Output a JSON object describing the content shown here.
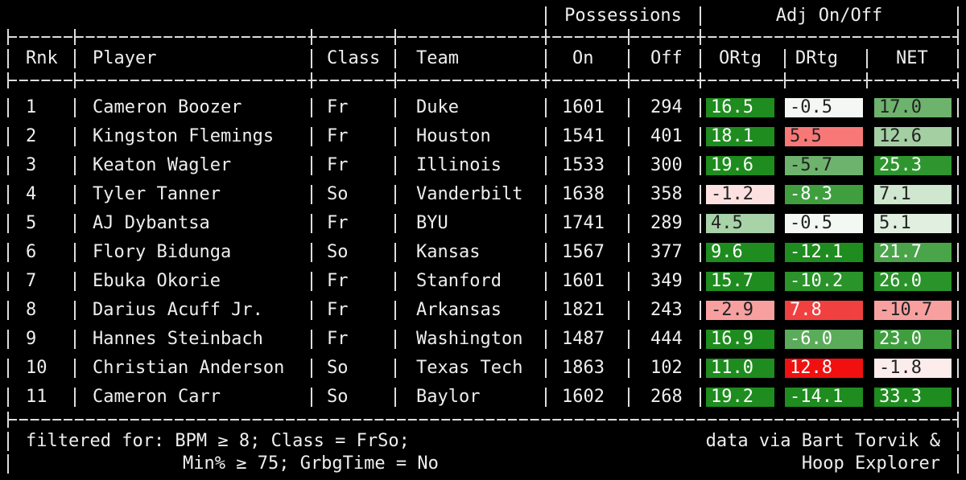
{
  "header_groups": [
    "Possessions",
    "Adj On/Off"
  ],
  "columns": [
    "Rnk",
    "Player",
    "Class",
    "Team",
    "On",
    "Off",
    "ORtg",
    "DRtg",
    "NET"
  ],
  "rows": [
    [
      "1",
      "Cameron Boozer",
      "Fr",
      "Duke",
      "1601",
      "294",
      "16.5",
      "-0.5",
      "17.0"
    ],
    [
      "2",
      "Kingston Flemings",
      "Fr",
      "Houston",
      "1541",
      "401",
      "18.1",
      "5.5",
      "12.6"
    ],
    [
      "3",
      "Keaton Wagler",
      "Fr",
      "Illinois",
      "1533",
      "300",
      "19.6",
      "-5.7",
      "25.3"
    ],
    [
      "4",
      "Tyler Tanner",
      "So",
      "Vanderbilt",
      "1638",
      "358",
      "-1.2",
      "-8.3",
      "7.1"
    ],
    [
      "5",
      "AJ Dybantsa",
      "Fr",
      "BYU",
      "1741",
      "289",
      "4.5",
      "-0.5",
      "5.1"
    ],
    [
      "6",
      "Flory Bidunga",
      "So",
      "Kansas",
      "1567",
      "377",
      "9.6",
      "-12.1",
      "21.7"
    ],
    [
      "7",
      "Ebuka Okorie",
      "Fr",
      "Stanford",
      "1601",
      "349",
      "15.7",
      "-10.2",
      "26.0"
    ],
    [
      "8",
      "Darius Acuff Jr.",
      "Fr",
      "Arkansas",
      "1821",
      "243",
      "-2.9",
      "7.8",
      "-10.7"
    ],
    [
      "9",
      "Hannes Steinbach",
      "Fr",
      "Washington",
      "1487",
      "444",
      "16.9",
      "-6.0",
      "23.0"
    ],
    [
      "10",
      "Christian Anderson",
      "So",
      "Texas Tech",
      "1863",
      "102",
      "11.0",
      "12.8",
      "-1.8"
    ],
    [
      "11",
      "Cameron Carr",
      "So",
      "Baylor",
      "1602",
      "268",
      "19.2",
      "-14.1",
      "33.3"
    ]
  ],
  "cell_colors": [
    [
      "#1e8c1e",
      "#f4f8f4",
      "#6db36d"
    ],
    [
      "#1e8c1e",
      "#f87878",
      "#a3cfa3"
    ],
    [
      "#1e8c1e",
      "#6db36d",
      "#2f962f"
    ],
    [
      "#fde0e0",
      "#3f9f3f",
      "#cfe6cf"
    ],
    [
      "#a8d2a8",
      "#f4f8f4",
      "#e0efe0"
    ],
    [
      "#1e8c1e",
      "#1e8c1e",
      "#4aa44a"
    ],
    [
      "#1e8c1e",
      "#2a932a",
      "#2a932a"
    ],
    [
      "#f8a0a0",
      "#f04040",
      "#f8a0a0"
    ],
    [
      "#1e8c1e",
      "#5aab5a",
      "#3f9f3f"
    ],
    [
      "#1e8c1e",
      "#f01010",
      "#fdecec"
    ],
    [
      "#1e8c1e",
      "#1e8c1e",
      "#1e8c1e"
    ]
  ],
  "footer": {
    "filter": [
      "filtered for: BPM ≥ 8; Class = FrSo;",
      "Min% ≥ 75; GrbgTime = No"
    ],
    "source": [
      "data via Bart Torvik &",
      "Hoop Explorer"
    ]
  }
}
